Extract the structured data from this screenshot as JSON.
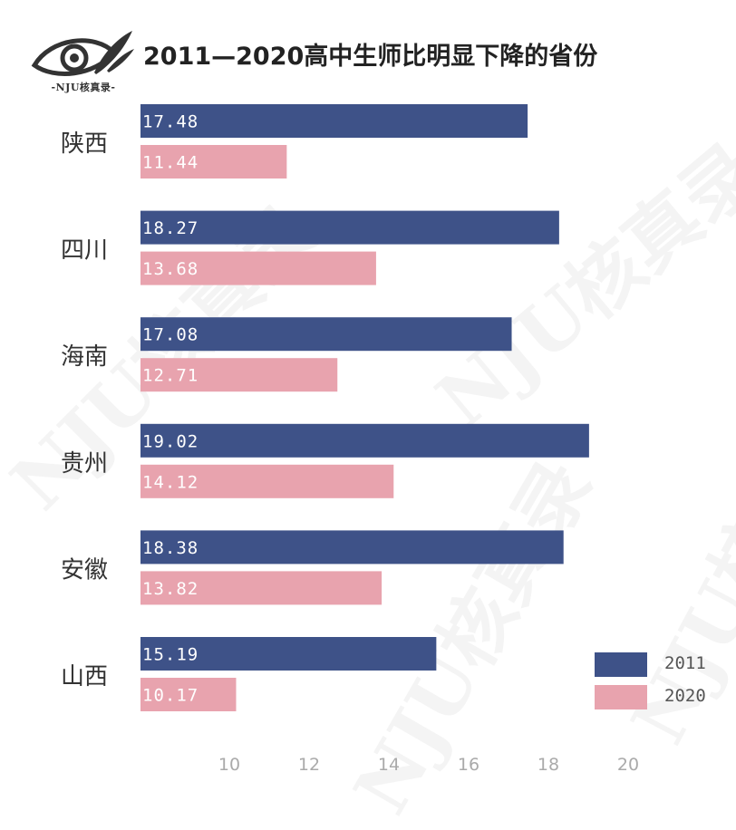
{
  "header": {
    "logo_caption": "-NJU核真录-",
    "title": "2011—2020高中生师比明显下降的省份"
  },
  "watermark": "NJU核真录",
  "colors": {
    "series_2011": "#3e5288",
    "series_2020": "#e8a3ae",
    "axis_text": "#aaaaaa"
  },
  "chart_data": {
    "type": "bar",
    "orientation": "horizontal",
    "title": "2011—2020高中生师比明显下降的省份",
    "categories": [
      "陕西",
      "四川",
      "海南",
      "贵州",
      "安徽",
      "山西"
    ],
    "series": [
      {
        "name": "2011",
        "values": [
          17.48,
          18.27,
          17.08,
          19.02,
          18.38,
          15.19
        ]
      },
      {
        "name": "2020",
        "values": [
          11.44,
          13.68,
          12.71,
          14.12,
          13.82,
          10.17
        ]
      }
    ],
    "x_ticks": [
      "10",
      "12",
      "14",
      "16",
      "18",
      "20"
    ],
    "xlim": [
      8.4,
      21.6
    ],
    "legend_position": "bottom-right",
    "grid": false
  }
}
